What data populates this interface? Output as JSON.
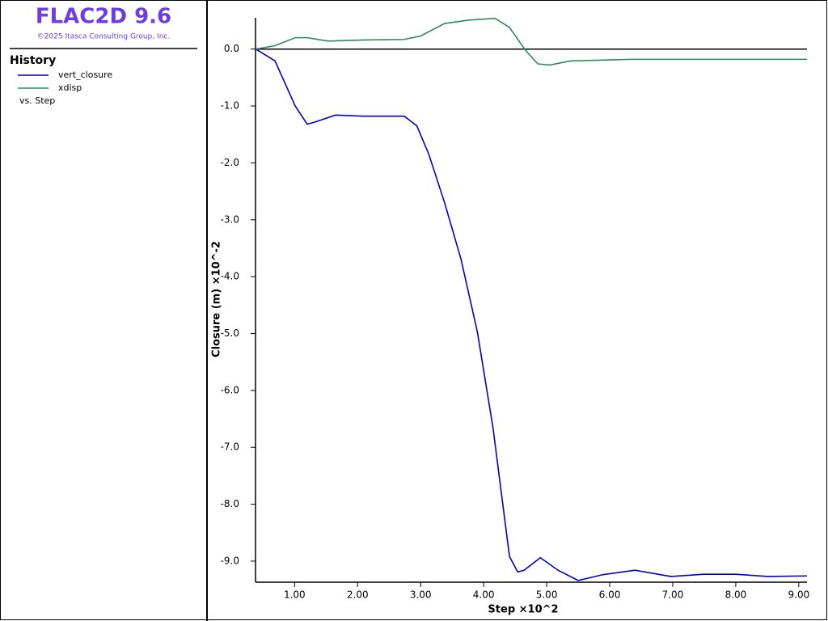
{
  "app": {
    "title": "FLAC2D 9.6",
    "copyright": "©2025 Itasca Consulting Group, Inc.",
    "panel_title": "History",
    "vs_label": "vs. Step"
  },
  "chart_data": {
    "type": "line",
    "x_label": "Step ×10^2",
    "y_label": "Closure (m)  ×10^-2",
    "xlim": [
      0.38,
      9.13
    ],
    "ylim": [
      -9.37,
      0.55
    ],
    "xticks": [
      {
        "value": 1,
        "label": "1.00"
      },
      {
        "value": 2,
        "label": "2.00"
      },
      {
        "value": 3,
        "label": "3.00"
      },
      {
        "value": 4,
        "label": "4.00"
      },
      {
        "value": 5,
        "label": "5.00"
      },
      {
        "value": 6,
        "label": "6.00"
      },
      {
        "value": 7,
        "label": "7.00"
      },
      {
        "value": 8,
        "label": "8.00"
      },
      {
        "value": 9,
        "label": "9.00"
      }
    ],
    "yticks": [
      {
        "value": 0,
        "label": "0.0"
      },
      {
        "value": -1,
        "label": "-1.0"
      },
      {
        "value": -2,
        "label": "-2.0"
      },
      {
        "value": -3,
        "label": "-3.0"
      },
      {
        "value": -4,
        "label": "-4.0"
      },
      {
        "value": -5,
        "label": "-5.0"
      },
      {
        "value": -6,
        "label": "-6.0"
      },
      {
        "value": -7,
        "label": "-7.0"
      },
      {
        "value": -8,
        "label": "-8.0"
      },
      {
        "value": -9,
        "label": "-9.0"
      }
    ],
    "series": [
      {
        "name": "vert_closure",
        "color": "#0000cc",
        "x": [
          0.385,
          0.69,
          1.01,
          1.2,
          1.33,
          1.65,
          2.1,
          2.49,
          2.74,
          2.94,
          3.13,
          3.38,
          3.64,
          3.9,
          4.15,
          4.41,
          4.54,
          4.64,
          4.9,
          5.18,
          5.5,
          5.88,
          6.4,
          6.97,
          7.49,
          8.0,
          8.51,
          9.13
        ],
        "values": [
          0,
          -0.21,
          -1.0,
          -1.32,
          -1.28,
          -1.16,
          -1.18,
          -1.18,
          -1.18,
          -1.35,
          -1.85,
          -2.7,
          -3.69,
          -4.97,
          -6.67,
          -8.92,
          -9.19,
          -9.16,
          -8.94,
          -9.16,
          -9.34,
          -9.24,
          -9.16,
          -9.27,
          -9.23,
          -9.23,
          -9.27,
          -9.26
        ]
      },
      {
        "name": "xdisp",
        "color": "#2e8b57",
        "x": [
          0.385,
          0.69,
          1.01,
          1.2,
          1.53,
          2.1,
          2.74,
          3.0,
          3.38,
          3.77,
          4.18,
          4.41,
          4.67,
          4.86,
          5.05,
          5.37,
          6.33,
          9.13
        ],
        "values": [
          0,
          0.06,
          0.2,
          0.2,
          0.14,
          0.16,
          0.17,
          0.23,
          0.45,
          0.51,
          0.54,
          0.38,
          -0.03,
          -0.26,
          -0.28,
          -0.21,
          -0.18,
          -0.18
        ]
      }
    ]
  }
}
